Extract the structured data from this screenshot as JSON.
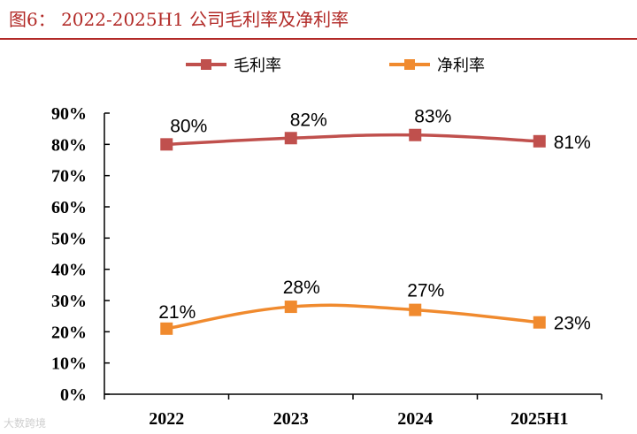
{
  "header": {
    "title": "图6： 2022-2025H1 公司毛利率及净利率"
  },
  "watermark": {
    "text": "大数跨境"
  },
  "colors": {
    "title": "#b22a27",
    "gross": "#c0504d",
    "net": "#f08a2e",
    "axis": "#000000"
  },
  "chart_data": {
    "type": "line",
    "title": "图6： 2022-2025H1 公司毛利率及净利率",
    "categories": [
      "2022",
      "2023",
      "2024",
      "2025H1"
    ],
    "series": [
      {
        "name": "毛利率",
        "values": [
          80,
          82,
          83,
          81
        ],
        "labels": [
          "80%",
          "82%",
          "83%",
          "81%"
        ],
        "color": "#c0504d"
      },
      {
        "name": "净利率",
        "values": [
          21,
          28,
          27,
          23
        ],
        "labels": [
          "21%",
          "28%",
          "27%",
          "23%"
        ],
        "color": "#f08a2e"
      }
    ],
    "ylim": [
      0,
      90
    ],
    "yticks": [
      0,
      10,
      20,
      30,
      40,
      50,
      60,
      70,
      80,
      90
    ],
    "ytick_labels": [
      "0%",
      "10%",
      "20%",
      "30%",
      "40%",
      "50%",
      "60%",
      "70%",
      "80%",
      "90%"
    ],
    "xlabel": "",
    "ylabel": "",
    "legend_position": "top-center",
    "grid": false
  }
}
